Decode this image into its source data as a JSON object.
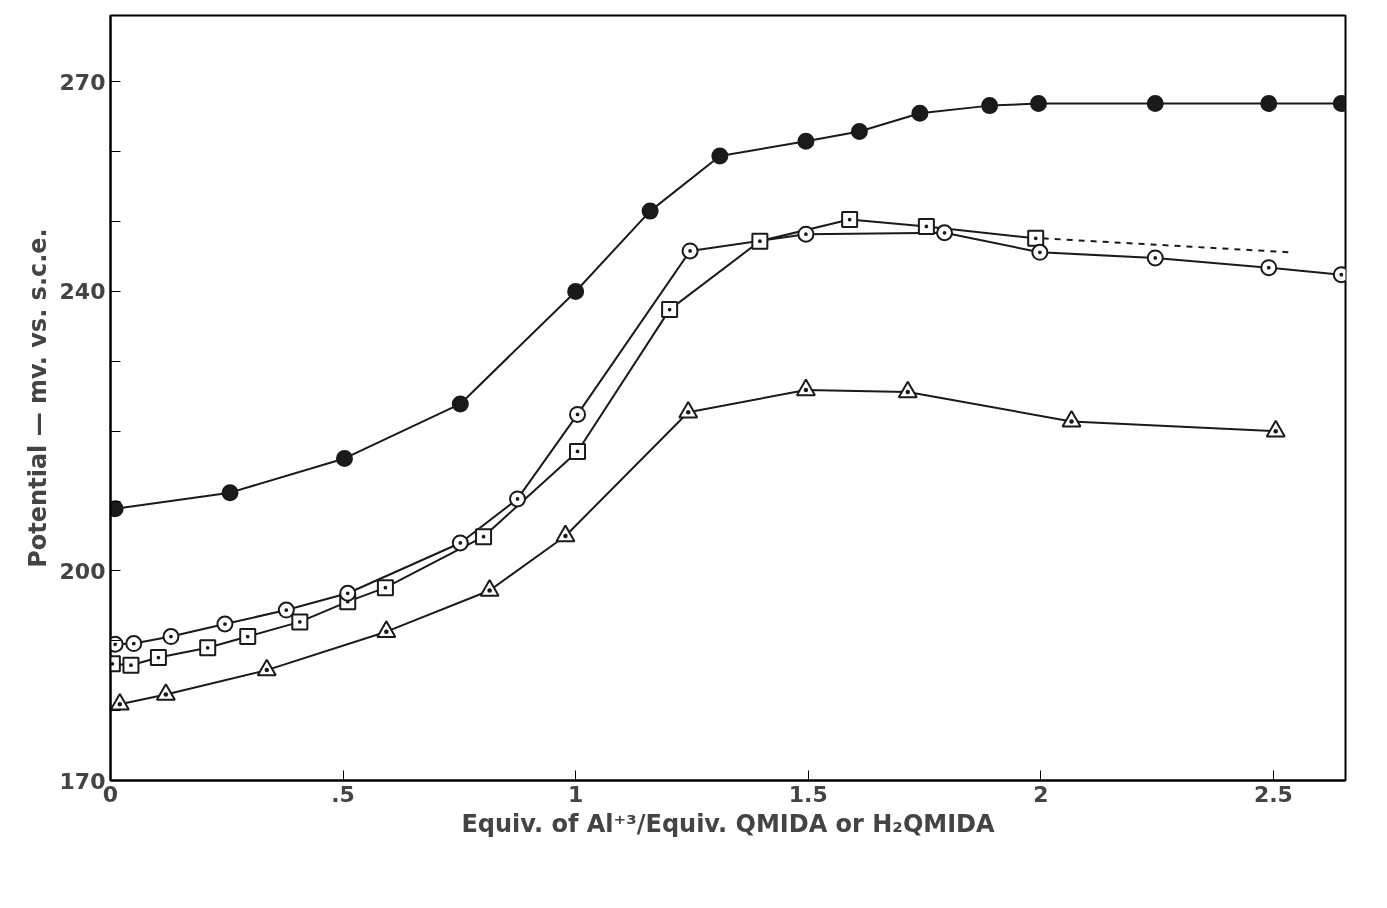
{
  "chart_data": {
    "type": "line",
    "xlabel": "Equiv. of Al⁺³/Equiv. QMIDA or H₂QMIDA",
    "ylabel": "Potential — mv. vs. s.c.e.",
    "xlim": [
      0,
      2.655
    ],
    "ylim": [
      170,
      279.5
    ],
    "xticks": [
      0,
      {
        "value": 0.5,
        "label": ".5"
      },
      1,
      1.5,
      2,
      2.5
    ],
    "yticks": [
      170,
      {
        "value": 180,
        "label": null
      },
      {
        "value": 190,
        "label": null
      },
      200,
      {
        "value": 210,
        "label": null
      },
      {
        "value": 220,
        "label": null
      },
      {
        "value": 230,
        "label": null
      },
      240,
      {
        "value": 250,
        "label": null
      },
      {
        "value": 260,
        "label": null
      },
      270
    ],
    "grid": false,
    "line_style": "solid",
    "series": [
      {
        "color": "#1a1a1a",
        "marker": "circle",
        "x": [
          0.01,
          0.257,
          0.503,
          0.752,
          1.0,
          1.16,
          1.31,
          1.495,
          1.61,
          1.74,
          1.89,
          1.995,
          2.246,
          2.49,
          2.646
        ],
        "values": [
          208.9,
          211.2,
          216.1,
          223.9,
          240.0,
          251.5,
          259.4,
          261.5,
          262.9,
          265.5,
          266.6,
          266.9,
          266.9,
          266.9,
          266.9
        ]
      },
      {
        "color": "#1a1a1a",
        "marker": "circle_dot",
        "x": [
          0.01,
          0.05,
          0.13,
          0.246,
          0.378,
          0.51,
          0.752,
          0.875,
          1.004,
          1.246,
          1.495,
          1.793,
          1.998,
          2.246,
          2.49,
          2.646
        ],
        "values": [
          189.5,
          189.6,
          190.6,
          192.4,
          194.4,
          196.8,
          204.0,
          210.3,
          222.4,
          245.8,
          248.2,
          248.4,
          245.6,
          244.8,
          243.4,
          242.4
        ]
      },
      {
        "color": "#1a1a1a",
        "marker": "square_dot",
        "x": [
          0.004,
          0.044,
          0.103,
          0.209,
          0.295,
          0.407,
          0.51,
          0.591,
          0.802,
          1.004,
          1.202,
          1.396,
          1.589,
          1.754,
          1.989
        ],
        "values": [
          186.7,
          186.5,
          187.6,
          189.0,
          190.6,
          192.7,
          195.6,
          197.6,
          204.9,
          217.1,
          237.4,
          247.2,
          250.3,
          249.3,
          247.6
        ]
      },
      {
        "color": "#1a1a1a",
        "marker": "none",
        "line_style": "dashed",
        "x": [
          2.004,
          2.538
        ],
        "values": [
          247.6,
          245.6
        ]
      },
      {
        "color": "#1a1a1a",
        "marker": "triangle_dot",
        "x": [
          0.02,
          0.119,
          0.336,
          0.593,
          0.815,
          0.978,
          1.242,
          1.495,
          1.714,
          2.066,
          2.505
        ],
        "values": [
          180.9,
          182.3,
          185.8,
          191.3,
          197.2,
          205.0,
          222.7,
          225.9,
          225.6,
          221.4,
          220.0
        ]
      }
    ]
  }
}
